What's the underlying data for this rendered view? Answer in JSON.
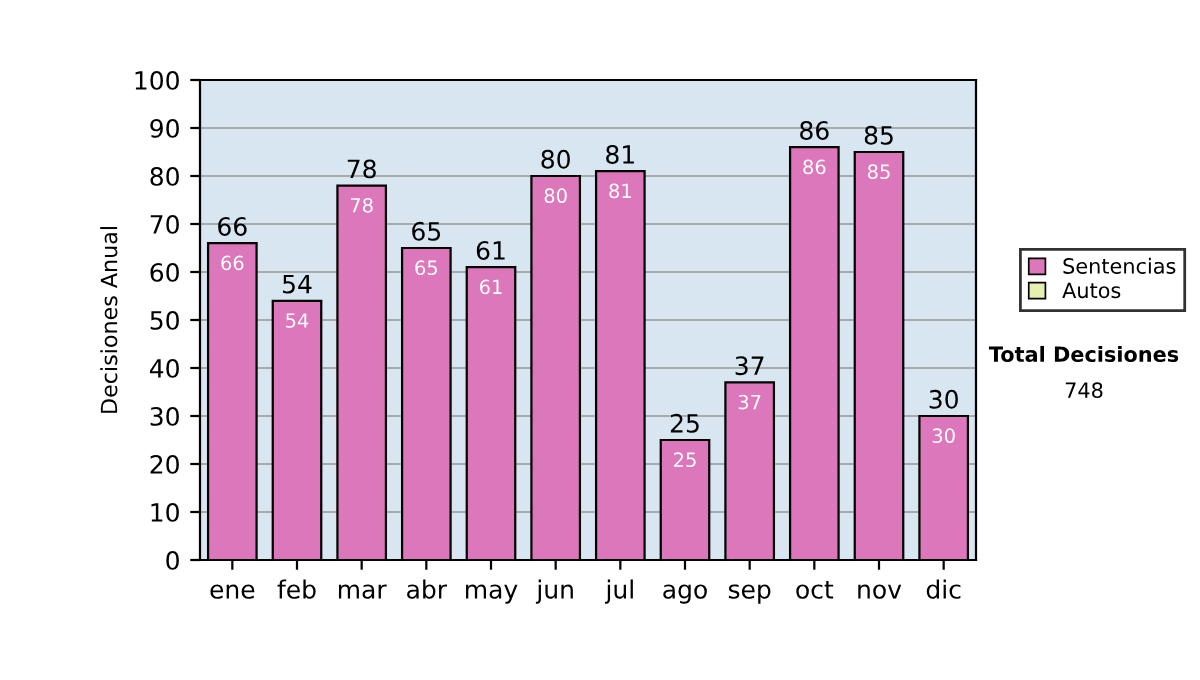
{
  "chart_data": {
    "type": "bar",
    "stacked": true,
    "ylabel": "Decisiones Anual",
    "categories": [
      "ene",
      "feb",
      "mar",
      "abr",
      "may",
      "jun",
      "jul",
      "ago",
      "sep",
      "oct",
      "nov",
      "dic"
    ],
    "series": [
      {
        "name": "Sentencias",
        "color": "#dd77bb",
        "values": [
          66,
          54,
          78,
          65,
          61,
          80,
          81,
          25,
          37,
          86,
          85,
          30
        ],
        "value_labels": [
          "66",
          "54",
          "78",
          "65",
          "61",
          "80",
          "81",
          "25",
          "37",
          "86",
          "85",
          "30"
        ]
      },
      {
        "name": "Autos",
        "color": "#e6eeb0",
        "values": [
          0,
          0,
          0,
          0,
          0,
          0,
          0,
          0,
          0,
          0,
          0,
          0
        ]
      }
    ],
    "totals": [
      "66",
      "54",
      "78",
      "65",
      "61",
      "80",
      "81",
      "25",
      "37",
      "86",
      "85",
      "30"
    ],
    "ylim": [
      0,
      100
    ],
    "yticks": [
      0,
      10,
      20,
      30,
      40,
      50,
      60,
      70,
      80,
      90,
      100
    ],
    "grid": "y",
    "legend": "right",
    "annotations": [
      "Total Decisiones",
      "748"
    ]
  }
}
